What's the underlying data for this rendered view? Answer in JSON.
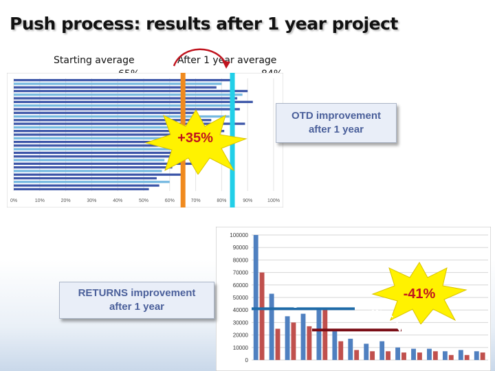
{
  "title": "Push process: results after 1 year project",
  "labels": {
    "starting_average": "Starting average",
    "starting_average_value": "65%",
    "after_average": "After 1 year average",
    "after_average_value": "84%"
  },
  "callouts": {
    "otd_line1": "OTD improvement",
    "otd_line2": "after 1 year",
    "returns_line1": "RETURNS improvement",
    "returns_line2": "after 1 year",
    "otd_delta": "+35%",
    "returns_delta": "-41%",
    "returns_start_label": "S",
    "returns_start_value": "3"
  },
  "colors": {
    "otd_bar_main": "#3d56a8",
    "otd_bar_light": "#74b8e0",
    "start_marker": "#f08a1e",
    "after_marker": "#22cfe8",
    "returns_series_a": "#4f80c0",
    "returns_series_b": "#c0504d",
    "returns_start_line": "#1f6ba8",
    "returns_after_line": "#7a0c14",
    "star_fill": "#fff200",
    "arrow": "#c0141e"
  },
  "chart_data": [
    {
      "type": "bar",
      "orientation": "horizontal",
      "xlim": [
        0,
        100
      ],
      "x_unit": "%",
      "x_ticks": [
        "0%",
        "10%",
        "20%",
        "30%",
        "40%",
        "50%",
        "60%",
        "70%",
        "80%",
        "90%",
        "100%"
      ],
      "values": [
        85,
        80,
        78,
        90,
        88,
        86,
        92,
        84,
        87,
        70,
        83,
        76,
        89,
        74,
        81,
        69,
        79,
        67,
        64,
        75,
        62,
        66,
        58,
        73,
        61,
        57,
        65,
        55,
        60,
        56,
        52
      ],
      "reference_lines": [
        65,
        84
      ]
    },
    {
      "type": "bar",
      "ylim": [
        0,
        100000
      ],
      "y_ticks": [
        "0",
        "10000",
        "20000",
        "30000",
        "40000",
        "50000",
        "60000",
        "70000",
        "80000",
        "90000",
        "100000"
      ],
      "series": [
        {
          "values": [
            100000,
            53000,
            35000,
            37000,
            40000,
            23000,
            17000,
            13000,
            15000,
            10000,
            9000,
            9000,
            7000,
            8000,
            7000
          ]
        },
        {
          "values": [
            70000,
            25000,
            30000,
            27000,
            41000,
            15000,
            8000,
            7000,
            7000,
            6000,
            6000,
            7000,
            4000,
            4000,
            6000
          ]
        }
      ],
      "reference_lines": [
        41000,
        24000
      ]
    }
  ]
}
